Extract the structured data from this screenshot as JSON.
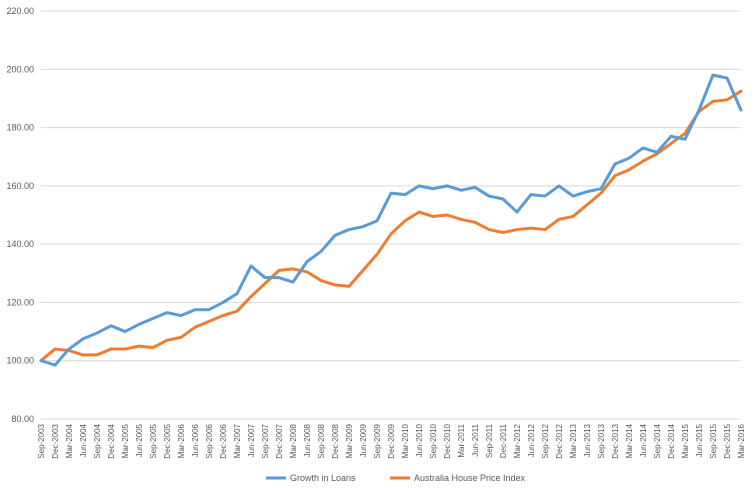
{
  "chart_data": {
    "type": "line",
    "title": "",
    "xlabel": "",
    "ylabel": "",
    "ylim": [
      80,
      220
    ],
    "yticks": [
      "80.00",
      "100.00",
      "120.00",
      "140.00",
      "160.00",
      "180.00",
      "200.00",
      "220.00"
    ],
    "grid": true,
    "legend_position": "bottom",
    "categories": [
      "Sep-2003",
      "Dec-2003",
      "Mar-2004",
      "Jun-2004",
      "Sep-2004",
      "Dec-2004",
      "Mar-2005",
      "Jun-2005",
      "Sep-2005",
      "Dec-2005",
      "Mar-2006",
      "Jun-2006",
      "Sep-2006",
      "Dec-2006",
      "Mar-2007",
      "Jun-2007",
      "Sep-2007",
      "Dec-2007",
      "Mar-2008",
      "Jun-2008",
      "Sep-2008",
      "Dec-2008",
      "Mar-2009",
      "Jun-2009",
      "Sep-2009",
      "Dec-2009",
      "Mar-2010",
      "Jun-2010",
      "Sep-2010",
      "Dec-2010",
      "Mar-2011",
      "Jun-2011",
      "Sep-2011",
      "Dec-2011",
      "Mar-2012",
      "Jun-2012",
      "Sep-2012",
      "Dec-2012",
      "Mar-2013",
      "Jun-2013",
      "Sep-2013",
      "Dec-2013",
      "Mar-2014",
      "Jun-2014",
      "Sep-2014",
      "Dec-2014",
      "Mar-2015",
      "Jun-2015",
      "Sep-2015",
      "Dec-2015",
      "Mar-2016"
    ],
    "series": [
      {
        "name": "Growth in Loans",
        "color": "#5b9bd5",
        "values": [
          100.0,
          98.5,
          104.0,
          107.5,
          109.5,
          112.0,
          110.0,
          112.5,
          114.5,
          116.5,
          115.5,
          117.5,
          117.5,
          120.0,
          123.0,
          132.5,
          128.5,
          128.5,
          127.0,
          134.0,
          137.5,
          143.0,
          145.0,
          146.0,
          148.0,
          157.5,
          157.0,
          160.0,
          159.0,
          160.0,
          158.5,
          159.5,
          156.5,
          155.5,
          151.0,
          157.0,
          156.5,
          160.0,
          156.5,
          158.0,
          159.0,
          167.5,
          169.5,
          173.0,
          171.5,
          177.0,
          176.0,
          186.0,
          198.0,
          197.0,
          186.0
        ]
      },
      {
        "name": "Australia House Price Index",
        "color": "#ed7d31",
        "values": [
          100.0,
          104.0,
          103.5,
          102.0,
          102.0,
          104.0,
          104.0,
          105.0,
          104.5,
          107.0,
          108.0,
          111.5,
          113.5,
          115.5,
          117.0,
          122.0,
          126.5,
          131.0,
          131.5,
          130.5,
          127.5,
          126.0,
          125.5,
          131.0,
          136.5,
          143.5,
          148.0,
          151.0,
          149.5,
          150.0,
          148.5,
          147.5,
          145.0,
          144.0,
          145.0,
          145.5,
          145.0,
          148.5,
          149.5,
          153.5,
          157.5,
          163.5,
          165.5,
          168.5,
          171.0,
          174.5,
          178.0,
          185.5,
          189.0,
          189.5,
          192.5
        ]
      }
    ]
  }
}
